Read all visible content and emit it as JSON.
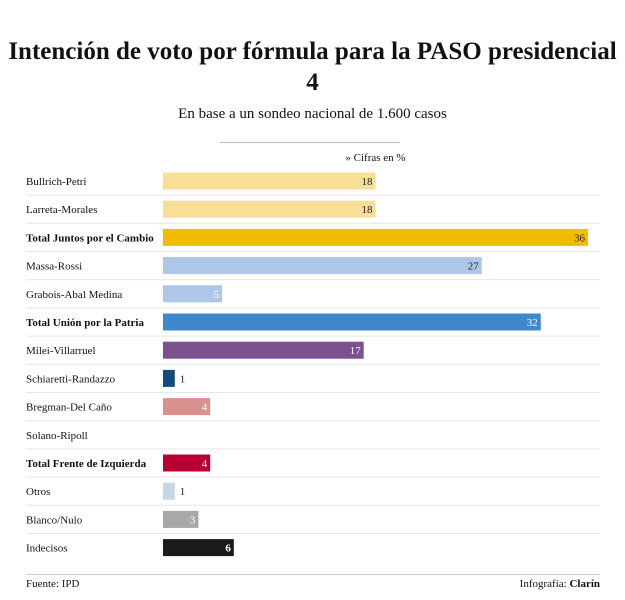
{
  "chart_data": {
    "type": "bar",
    "orientation": "horizontal",
    "title": "Intención de voto por fórmula para la PASO presidencial 4",
    "subtitle": "En base a un sondeo nacional de 1.600 casos",
    "units_note": "» Cifras en %",
    "xlim": [
      0,
      36
    ],
    "categories": [
      "Bullrich-Petri",
      "Larreta-Morales",
      "Total Juntos por el Cambio",
      "Massa-Rossi",
      "Grabois-Abal Medina",
      "Total Unión por la Patria",
      "Milei-Villarruel",
      "Schiaretti-Randazzo",
      "Bregman-Del Caño",
      "Solano-Ripoll",
      "Total Frente de Izquierda",
      "Otros",
      "Blanco/Nulo",
      "Indecisos"
    ],
    "values": [
      18,
      18,
      36,
      27,
      5,
      32,
      17,
      1,
      4,
      null,
      4,
      1,
      3,
      6
    ],
    "value_labels": [
      "18",
      "18",
      "36",
      "27",
      "5",
      "32",
      "17",
      "1",
      "4",
      "",
      "4",
      "1",
      "3",
      "6"
    ],
    "bold": [
      false,
      false,
      true,
      false,
      false,
      true,
      false,
      false,
      false,
      false,
      true,
      false,
      false,
      false
    ],
    "colors": [
      "#f9de97",
      "#f9de97",
      "#f2bd00",
      "#aec6e8",
      "#aec6e8",
      "#3f88cb",
      "#7b4f90",
      "#0e4d7e",
      "#d9918d",
      "#d9918d",
      "#b90035",
      "#c8d5e2",
      "#a8a8a8",
      "#1b1b1b"
    ],
    "label_colors": [
      "#222222",
      "#222222",
      "#222222",
      "#222222",
      "#ffffff",
      "#ffffff",
      "#ffffff",
      "#222222",
      "#ffffff",
      "#ffffff",
      "#ffffff",
      "#222222",
      "#ffffff",
      "#ffffff"
    ]
  },
  "footer": {
    "source": "Fuente: IPD",
    "credit_label": "Infografía:",
    "credit_brand": "Clarín"
  }
}
